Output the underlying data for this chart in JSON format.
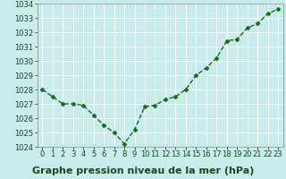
{
  "x": [
    0,
    1,
    2,
    3,
    4,
    5,
    6,
    7,
    8,
    9,
    10,
    11,
    12,
    13,
    14,
    15,
    16,
    17,
    18,
    19,
    20,
    21,
    22,
    23
  ],
  "y": [
    1028.0,
    1027.5,
    1027.0,
    1027.0,
    1026.9,
    1026.2,
    1025.5,
    1025.0,
    1024.2,
    1025.2,
    1026.8,
    1026.9,
    1027.3,
    1027.5,
    1028.0,
    1029.0,
    1029.5,
    1030.2,
    1031.4,
    1031.5,
    1032.3,
    1032.6,
    1033.3,
    1033.6
  ],
  "line_color": "#1a6b1a",
  "marker": "D",
  "marker_size": 2.5,
  "line_width": 1.0,
  "line_style": "--",
  "background_color": "#c8ecec",
  "grid_color": "#ffffff",
  "title": "Graphe pression niveau de la mer (hPa)",
  "ylim": [
    1024.0,
    1034.0
  ],
  "xlim": [
    -0.5,
    23.5
  ],
  "yticks": [
    1024,
    1025,
    1026,
    1027,
    1028,
    1029,
    1030,
    1031,
    1032,
    1033,
    1034
  ],
  "xtick_labels": [
    "0",
    "1",
    "2",
    "3",
    "4",
    "5",
    "6",
    "7",
    "8",
    "9",
    "10",
    "11",
    "12",
    "13",
    "14",
    "15",
    "16",
    "17",
    "18",
    "19",
    "20",
    "21",
    "22",
    "23"
  ],
  "tick_fontsize": 6.0,
  "title_fontsize": 8.0,
  "title_fontweight": "bold",
  "title_color": "#1a4a1a"
}
